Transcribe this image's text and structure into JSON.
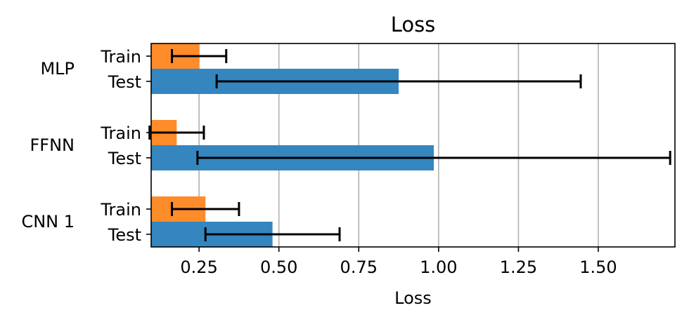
{
  "chart_data": {
    "type": "bar",
    "orientation": "horizontal",
    "title": "Loss",
    "xlabel": "Loss",
    "ylabel": "",
    "xlim": [
      0.1,
      1.74
    ],
    "xticks": [
      "0.25",
      "0.50",
      "0.75",
      "1.00",
      "1.25",
      "1.50"
    ],
    "xtick_values": [
      0.25,
      0.5,
      0.75,
      1.0,
      1.25,
      1.5
    ],
    "grid": "vertical",
    "groups": [
      "MLP",
      "FFNN",
      "CNN 1"
    ],
    "bar_labels": [
      "Train",
      "Test"
    ],
    "series": [
      {
        "name": "Train",
        "color": "#ff8c2b",
        "values": [
          0.25,
          0.18,
          0.27
        ],
        "error": [
          0.085,
          0.085,
          0.105
        ]
      },
      {
        "name": "Test",
        "color": "#3586bf",
        "values": [
          0.875,
          0.985,
          0.48
        ],
        "error": [
          0.57,
          0.74,
          0.21
        ]
      }
    ]
  }
}
